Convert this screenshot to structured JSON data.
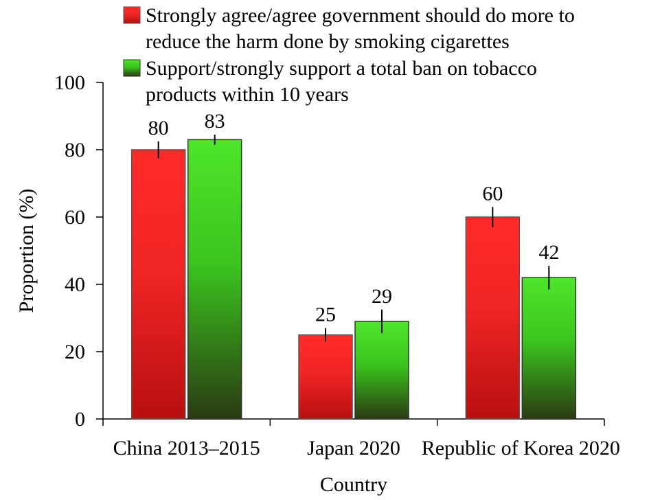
{
  "chart_data": {
    "type": "bar",
    "categories": [
      "China 2013–2015",
      "Japan 2020",
      "Republic of Korea 2020"
    ],
    "series": [
      {
        "name_lines": [
          "Strongly agree/agree government should do more to",
          "reduce the harm done by smoking cigarettes"
        ],
        "values": [
          80,
          25,
          60
        ],
        "data_labels": [
          "80",
          "25",
          "60"
        ],
        "error": [
          2.5,
          2,
          3
        ],
        "color": "#ee2222"
      },
      {
        "name_lines": [
          "Support/strongly support a total ban on tobacco",
          "products within 10 years"
        ],
        "values": [
          83,
          29,
          42
        ],
        "data_labels": [
          "83",
          "29",
          "42"
        ],
        "error": [
          1.5,
          3.5,
          3.5
        ],
        "color": "#44dd22"
      }
    ],
    "xlabel": "Country",
    "ylabel": "Proportion (%)",
    "ylim": [
      0,
      100
    ],
    "yticks": [
      0,
      20,
      40,
      60,
      80,
      100
    ],
    "legend_position": "top",
    "grid": false
  }
}
